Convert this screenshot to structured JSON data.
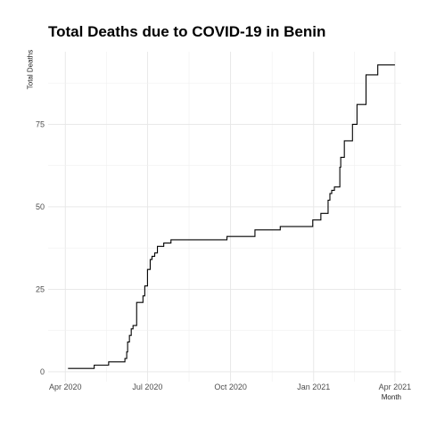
{
  "chart_data": {
    "type": "line",
    "title": "Total Deaths due to COVID-19 in Benin",
    "xlabel": "Month",
    "ylabel": "Total Deaths",
    "x_ticks": [
      {
        "label": "Apr 2020",
        "date": "2020-04-01"
      },
      {
        "label": "Jul 2020",
        "date": "2020-07-01"
      },
      {
        "label": "Oct 2020",
        "date": "2020-10-01"
      },
      {
        "label": "Jan 2021",
        "date": "2021-01-01"
      },
      {
        "label": "Apr 2021",
        "date": "2021-04-01"
      }
    ],
    "y_ticks": [
      0,
      25,
      50,
      75
    ],
    "xlim": [
      "2020-03-13",
      "2021-04-08"
    ],
    "ylim": [
      -3,
      97
    ],
    "grid": true,
    "series": [
      {
        "step": true,
        "color": "#000000",
        "points": [
          [
            "2020-04-04",
            1
          ],
          [
            "2020-05-03",
            2
          ],
          [
            "2020-05-19",
            3
          ],
          [
            "2020-06-06",
            4
          ],
          [
            "2020-06-08",
            6
          ],
          [
            "2020-06-09",
            9
          ],
          [
            "2020-06-11",
            11
          ],
          [
            "2020-06-13",
            13
          ],
          [
            "2020-06-15",
            14
          ],
          [
            "2020-06-19",
            21
          ],
          [
            "2020-06-26",
            23
          ],
          [
            "2020-06-28",
            26
          ],
          [
            "2020-07-01",
            31
          ],
          [
            "2020-07-04",
            34
          ],
          [
            "2020-07-06",
            35
          ],
          [
            "2020-07-09",
            36
          ],
          [
            "2020-07-12",
            38
          ],
          [
            "2020-07-19",
            39
          ],
          [
            "2020-07-27",
            40
          ],
          [
            "2020-09-27",
            41
          ],
          [
            "2020-10-28",
            43
          ],
          [
            "2020-11-25",
            44
          ],
          [
            "2020-12-31",
            46
          ],
          [
            "2021-01-09",
            48
          ],
          [
            "2021-01-17",
            52
          ],
          [
            "2021-01-19",
            54
          ],
          [
            "2021-01-21",
            55
          ],
          [
            "2021-01-24",
            56
          ],
          [
            "2021-01-30",
            62
          ],
          [
            "2021-01-31",
            65
          ],
          [
            "2021-02-04",
            70
          ],
          [
            "2021-02-13",
            75
          ],
          [
            "2021-02-18",
            81
          ],
          [
            "2021-02-28",
            90
          ],
          [
            "2021-03-13",
            93
          ],
          [
            "2021-04-01",
            93
          ]
        ]
      }
    ]
  }
}
